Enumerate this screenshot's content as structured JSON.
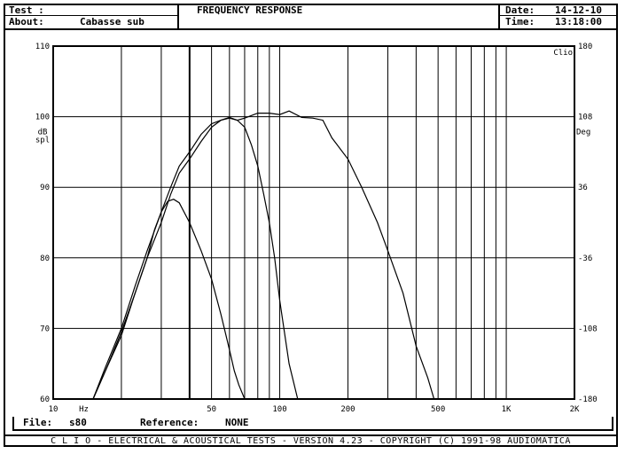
{
  "header": {
    "test_label": "Test :",
    "title": "FREQUENCY RESPONSE",
    "about_label": "About:",
    "about_value": "Cabasse sub",
    "date_label": "Date:",
    "date_value": "14-12-10",
    "time_label": "Time:",
    "time_value": "13:18:00"
  },
  "status": {
    "file_label": "File:",
    "file_value": "s80",
    "reference_label": "Reference:",
    "reference_value": "NONE"
  },
  "footer": {
    "text": "C L I O  -  ELECTRICAL & ACOUSTICAL TESTS  -  VERSION 4.23  -  COPYRIGHT (C) 1991-98 AUDIOMATICA"
  },
  "chart_data": {
    "type": "line",
    "x_scale": "log",
    "xlim": [
      10,
      2000
    ],
    "ylim": [
      60,
      110
    ],
    "y2lim": [
      -180,
      180
    ],
    "x_tick_labels": [
      {
        "value": 10,
        "label": "10"
      },
      {
        "value": 50,
        "label": "50"
      },
      {
        "value": 100,
        "label": "100"
      },
      {
        "value": 200,
        "label": "200"
      },
      {
        "value": 500,
        "label": "500"
      },
      {
        "value": 1000,
        "label": "1K"
      },
      {
        "value": 2000,
        "label": "2K"
      }
    ],
    "x_unit": "Hz",
    "y_ticks": [
      60,
      70,
      80,
      90,
      100,
      110
    ],
    "y_unit_label": [
      "dB",
      "spl"
    ],
    "y2_ticks": [
      -180,
      -108,
      -36,
      36,
      108,
      180
    ],
    "y2_unit_label": "Deg",
    "corner_label": "Clio",
    "grid": true,
    "series": [
      {
        "values": [
          [
            15,
            59.5
          ],
          [
            17,
            64
          ],
          [
            20,
            69
          ],
          [
            23,
            75
          ],
          [
            26,
            80
          ],
          [
            30,
            85
          ],
          [
            33,
            89
          ],
          [
            36,
            92
          ],
          [
            40,
            94
          ],
          [
            45,
            96.5
          ],
          [
            50,
            98.5
          ],
          [
            55,
            99.5
          ],
          [
            60,
            99.8
          ],
          [
            65,
            99.5
          ],
          [
            70,
            99.8
          ],
          [
            80,
            100.5
          ],
          [
            90,
            100.5
          ],
          [
            100,
            100.3
          ],
          [
            110,
            100.8
          ],
          [
            125,
            99.9
          ],
          [
            140,
            99.8
          ],
          [
            155,
            99.5
          ],
          [
            170,
            97
          ],
          [
            200,
            94
          ],
          [
            230,
            90
          ],
          [
            270,
            85
          ],
          [
            300,
            81
          ],
          [
            350,
            75
          ],
          [
            400,
            67.5
          ],
          [
            450,
            63
          ],
          [
            480,
            60
          ]
        ]
      },
      {
        "values": [
          [
            15,
            59.5
          ],
          [
            17,
            64.5
          ],
          [
            20,
            70
          ],
          [
            23,
            76
          ],
          [
            26,
            81
          ],
          [
            30,
            86.5
          ],
          [
            33,
            90
          ],
          [
            36,
            93
          ],
          [
            40,
            95
          ],
          [
            45,
            97.5
          ],
          [
            50,
            99
          ],
          [
            55,
            99.5
          ],
          [
            60,
            99.9
          ],
          [
            65,
            99.5
          ],
          [
            70,
            98.5
          ],
          [
            75,
            96
          ],
          [
            80,
            93
          ],
          [
            85,
            89
          ],
          [
            90,
            85
          ],
          [
            95,
            80
          ],
          [
            100,
            74
          ],
          [
            110,
            65
          ],
          [
            120,
            60
          ]
        ]
      },
      {
        "values": [
          [
            15,
            59.5
          ],
          [
            17,
            64
          ],
          [
            20,
            69.5
          ],
          [
            23,
            75
          ],
          [
            26,
            80
          ],
          [
            28,
            84
          ],
          [
            30,
            86.5
          ],
          [
            32,
            88
          ],
          [
            34,
            88.3
          ],
          [
            36,
            87.8
          ],
          [
            40,
            85
          ],
          [
            45,
            81
          ],
          [
            50,
            77
          ],
          [
            55,
            72
          ],
          [
            60,
            67
          ],
          [
            63,
            64
          ],
          [
            66,
            62
          ],
          [
            70,
            60
          ]
        ]
      }
    ]
  }
}
